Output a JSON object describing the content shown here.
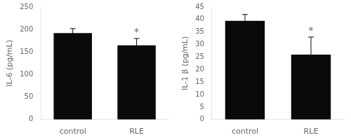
{
  "chart_data": [
    {
      "type": "bar",
      "categories": [
        "control",
        "RLE"
      ],
      "values": [
        192,
        165
      ],
      "errors": [
        10,
        15
      ],
      "ylabel": "IL-6 (pg/mL)",
      "ylim": [
        0,
        250
      ],
      "yticks": [
        0,
        50,
        100,
        150,
        200,
        250
      ],
      "color": "#0a0a0a",
      "grid": false,
      "annotations": [
        {
          "text": "*",
          "category": "RLE"
        }
      ]
    },
    {
      "type": "bar",
      "categories": [
        "control",
        "RLE"
      ],
      "values": [
        39.5,
        26
      ],
      "errors": [
        2.5,
        7
      ],
      "ylabel": "IL-1 β (pg/mL)",
      "ylim": [
        0,
        45
      ],
      "yticks": [
        0,
        5,
        10,
        15,
        20,
        25,
        30,
        35,
        40,
        45
      ],
      "color": "#0a0a0a",
      "grid": false,
      "annotations": [
        {
          "text": "*",
          "category": "RLE"
        }
      ]
    }
  ]
}
